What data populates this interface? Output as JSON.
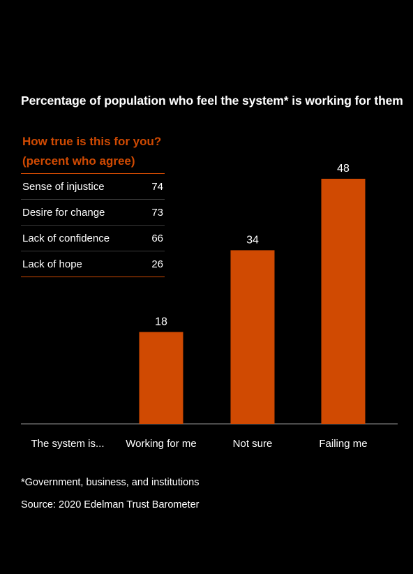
{
  "chart_data": {
    "type": "bar",
    "title": "Percentage of population who feel the system* is working for them",
    "axis_lead_label": "The system is...",
    "categories": [
      "Working for me",
      "Not sure",
      "Failing me"
    ],
    "values": [
      18,
      34,
      48
    ],
    "ylim": [
      0,
      48
    ],
    "grid": false,
    "colors": {
      "bar": "#d04a02",
      "axis": "#999999",
      "text": "#ffffff"
    }
  },
  "inset": {
    "heading_line1": "How true is this for you?",
    "heading_line2": "(percent who agree)",
    "rows": [
      {
        "label": "Sense of injustice",
        "value": "74"
      },
      {
        "label": "Desire for change",
        "value": "73"
      },
      {
        "label": "Lack of confidence",
        "value": "66"
      },
      {
        "label": "Lack of hope",
        "value": "26"
      }
    ]
  },
  "footnotes": {
    "note": "*Government, business, and institutions",
    "source": "Source: 2020 Edelman Trust Barometer"
  }
}
